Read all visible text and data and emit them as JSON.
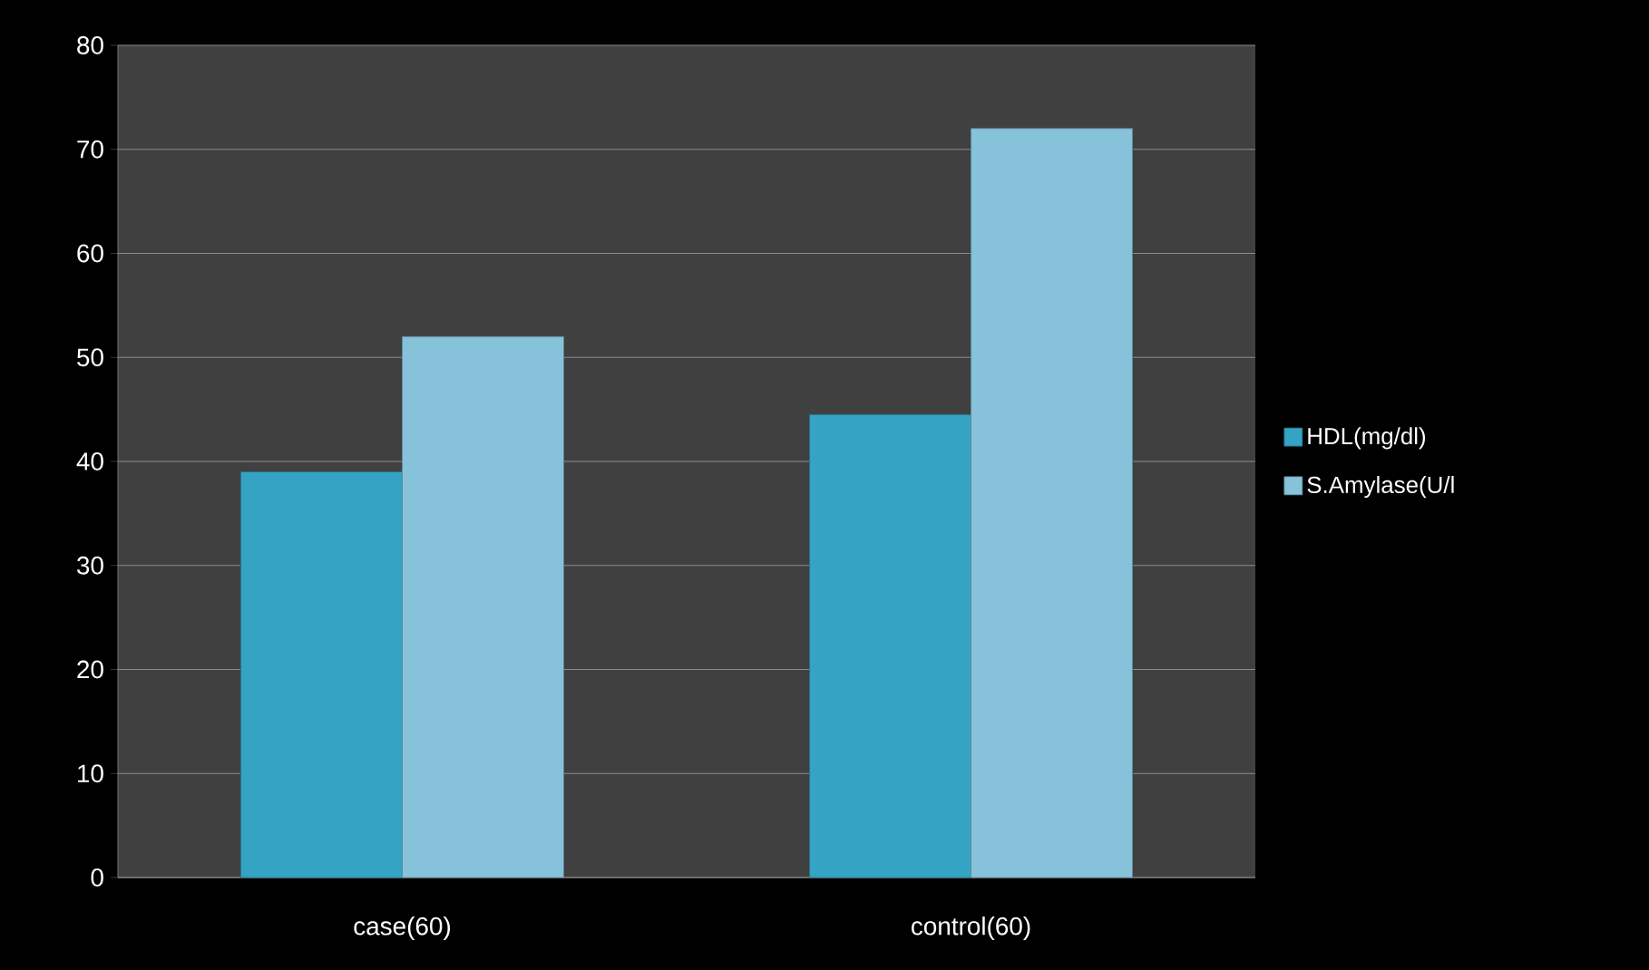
{
  "chart_data": {
    "type": "bar",
    "categories": [
      "case(60)",
      "control(60)"
    ],
    "series": [
      {
        "name": "HDL(mg/dl)",
        "color": "#34a3c4",
        "values": [
          39,
          44.5
        ]
      },
      {
        "name": "S.Amylase(U/l",
        "color": "#86c3db",
        "values": [
          52,
          72
        ]
      }
    ],
    "ylim": [
      0,
      80
    ],
    "yticks": [
      0,
      10,
      20,
      30,
      40,
      50,
      60,
      70,
      80
    ],
    "grid": "y",
    "legend": "right"
  }
}
